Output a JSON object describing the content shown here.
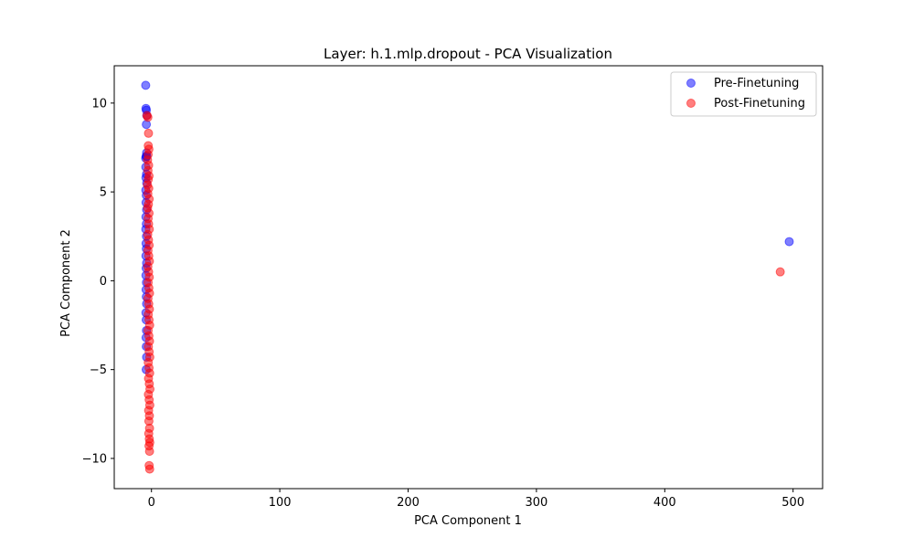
{
  "chart_data": {
    "type": "scatter",
    "title": "Layer: h.1.mlp.dropout - PCA Visualization",
    "xlabel": "PCA Component 1",
    "ylabel": "PCA Component 2",
    "xlim": [
      -29,
      523
    ],
    "ylim": [
      -11.7,
      12.1
    ],
    "xticks": [
      0,
      100,
      200,
      300,
      400,
      500
    ],
    "yticks": [
      -10,
      -5,
      0,
      5,
      10
    ],
    "xtick_labels": [
      "0",
      "100",
      "200",
      "300",
      "400",
      "500"
    ],
    "ytick_labels": [
      "−10",
      "−5",
      "0",
      "5",
      "10"
    ],
    "grid": false,
    "legend_position": "top-right",
    "marker_alpha": 0.5,
    "series": [
      {
        "name": "Pre-Finetuning",
        "color": "#0000ff",
        "points": [
          [
            -4.5,
            11.0
          ],
          [
            -4.3,
            9.7
          ],
          [
            -4.0,
            9.6
          ],
          [
            -3.6,
            9.3
          ],
          [
            -4.0,
            8.8
          ],
          [
            -3.8,
            7.2
          ],
          [
            -4.2,
            7.0
          ],
          [
            -4.5,
            6.9
          ],
          [
            -3.6,
            7.0
          ],
          [
            -4.4,
            6.4
          ],
          [
            -3.9,
            6.0
          ],
          [
            -4.3,
            5.8
          ],
          [
            -3.7,
            5.5
          ],
          [
            -4.4,
            5.1
          ],
          [
            -4.0,
            4.8
          ],
          [
            -4.2,
            4.4
          ],
          [
            -3.8,
            4.0
          ],
          [
            -4.3,
            3.6
          ],
          [
            -4.0,
            3.2
          ],
          [
            -4.4,
            2.9
          ],
          [
            -3.9,
            2.5
          ],
          [
            -4.2,
            2.1
          ],
          [
            -4.0,
            1.8
          ],
          [
            -4.3,
            1.4
          ],
          [
            -3.8,
            1.0
          ],
          [
            -4.1,
            0.7
          ],
          [
            -4.3,
            0.3
          ],
          [
            -3.9,
            -0.1
          ],
          [
            -4.2,
            -0.5
          ],
          [
            -4.0,
            -0.9
          ],
          [
            -3.8,
            -1.3
          ],
          [
            -4.3,
            -1.8
          ],
          [
            -4.1,
            -2.2
          ],
          [
            -3.9,
            -2.8
          ],
          [
            -4.2,
            -3.2
          ],
          [
            -4.0,
            -3.7
          ],
          [
            -3.8,
            -4.3
          ],
          [
            -4.1,
            -5.0
          ],
          [
            497.0,
            2.2
          ]
        ]
      },
      {
        "name": "Post-Finetuning",
        "color": "#ff0000",
        "points": [
          [
            -3.5,
            9.3
          ],
          [
            -2.8,
            9.2
          ],
          [
            -2.3,
            8.3
          ],
          [
            -2.5,
            7.6
          ],
          [
            -2.0,
            7.4
          ],
          [
            -2.6,
            7.1
          ],
          [
            -3.0,
            6.8
          ],
          [
            -2.2,
            6.5
          ],
          [
            -2.7,
            6.2
          ],
          [
            -1.9,
            5.9
          ],
          [
            -2.5,
            5.7
          ],
          [
            -3.1,
            5.4
          ],
          [
            -2.1,
            5.2
          ],
          [
            -2.8,
            4.9
          ],
          [
            -1.8,
            4.6
          ],
          [
            -2.4,
            4.3
          ],
          [
            -3.0,
            4.1
          ],
          [
            -1.9,
            3.8
          ],
          [
            -2.6,
            3.5
          ],
          [
            -2.2,
            3.2
          ],
          [
            -1.7,
            2.9
          ],
          [
            -2.9,
            2.6
          ],
          [
            -2.3,
            2.3
          ],
          [
            -1.8,
            2.0
          ],
          [
            -2.7,
            1.7
          ],
          [
            -2.1,
            1.4
          ],
          [
            -1.6,
            1.1
          ],
          [
            -2.8,
            0.8
          ],
          [
            -2.2,
            0.5
          ],
          [
            -1.7,
            0.2
          ],
          [
            -2.6,
            -0.1
          ],
          [
            -2.0,
            -0.4
          ],
          [
            -1.5,
            -0.7
          ],
          [
            -2.7,
            -1.0
          ],
          [
            -2.1,
            -1.3
          ],
          [
            -1.6,
            -1.6
          ],
          [
            -2.5,
            -1.9
          ],
          [
            -1.9,
            -2.2
          ],
          [
            -1.4,
            -2.5
          ],
          [
            -2.6,
            -2.8
          ],
          [
            -2.0,
            -3.1
          ],
          [
            -1.5,
            -3.4
          ],
          [
            -2.4,
            -3.7
          ],
          [
            -1.8,
            -4.0
          ],
          [
            -1.3,
            -4.3
          ],
          [
            -2.5,
            -4.6
          ],
          [
            -1.9,
            -4.9
          ],
          [
            -1.4,
            -5.2
          ],
          [
            -2.3,
            -5.5
          ],
          [
            -1.7,
            -5.8
          ],
          [
            -1.2,
            -6.1
          ],
          [
            -2.4,
            -6.4
          ],
          [
            -1.8,
            -6.7
          ],
          [
            -1.3,
            -7.0
          ],
          [
            -2.2,
            -7.3
          ],
          [
            -1.6,
            -7.6
          ],
          [
            -2.0,
            -7.9
          ],
          [
            -1.5,
            -8.3
          ],
          [
            -2.1,
            -8.6
          ],
          [
            -1.7,
            -8.9
          ],
          [
            -1.3,
            -9.1
          ],
          [
            -1.9,
            -9.3
          ],
          [
            -1.5,
            -9.6
          ],
          [
            -1.8,
            -10.4
          ],
          [
            -1.4,
            -10.6
          ],
          [
            490.0,
            0.5
          ]
        ]
      }
    ]
  }
}
